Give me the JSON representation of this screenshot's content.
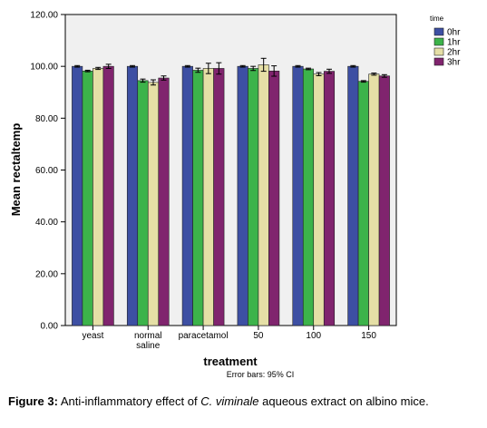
{
  "chart_data": {
    "type": "bar",
    "title": "",
    "xlabel": "treatment",
    "ylabel": "Mean rectaltemp",
    "ylim": [
      0,
      120
    ],
    "yticks": [
      "0.00",
      "20.00",
      "40.00",
      "60.00",
      "80.00",
      "100.00",
      "120.00"
    ],
    "grid": false,
    "legend_title": "time",
    "legend_position": "top-right",
    "categories": [
      "yeast",
      "normal saline",
      "paracetamol",
      "50",
      "100",
      "150"
    ],
    "category_lines": [
      [
        "yeast"
      ],
      [
        "normal",
        "saline"
      ],
      [
        "paracetamol"
      ],
      [
        "50"
      ],
      [
        "100"
      ],
      [
        "150"
      ]
    ],
    "series": [
      {
        "name": "0hr",
        "color": "#3d4fa3",
        "values": [
          100.0,
          100.0,
          100.0,
          100.0,
          100.0,
          100.0
        ],
        "errors": [
          0.3,
          0.3,
          0.3,
          0.3,
          0.3,
          0.3
        ]
      },
      {
        "name": "1hr",
        "color": "#3cb34a",
        "values": [
          98.2,
          94.5,
          98.5,
          99.2,
          99.0,
          94.2
        ],
        "errors": [
          0.3,
          0.6,
          0.8,
          0.8,
          0.3,
          0.3
        ]
      },
      {
        "name": "2hr",
        "color": "#e5dfa6",
        "values": [
          99.2,
          93.8,
          99.2,
          100.6,
          97.0,
          97.0
        ],
        "errors": [
          0.4,
          1.0,
          2.0,
          2.5,
          0.6,
          0.4
        ]
      },
      {
        "name": "3hr",
        "color": "#80246e",
        "values": [
          100.0,
          95.5,
          99.2,
          98.2,
          98.1,
          96.3
        ],
        "errors": [
          0.8,
          0.8,
          2.2,
          2.0,
          0.8,
          0.5
        ]
      }
    ],
    "footnote": "Error bars: 95% CI"
  },
  "caption": {
    "label": "Figure 3:",
    "text_before": "Anti-inflammatory effect of",
    "species": "C. viminale",
    "text_after": "aqueous extract on albino mice."
  }
}
